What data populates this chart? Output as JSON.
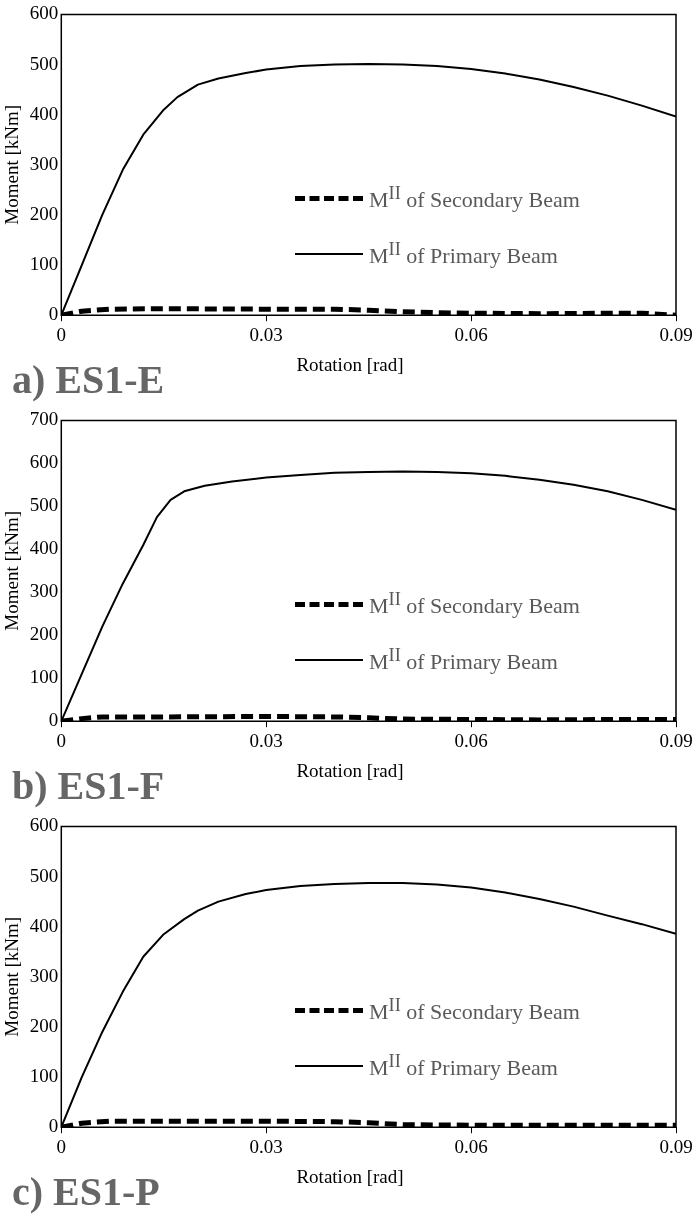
{
  "chart_data": [
    {
      "type": "line",
      "title": "a) ES1-E",
      "xlabel": "Rotation [rad]",
      "ylabel": "Moment [kNm]",
      "xlim": [
        0,
        0.09
      ],
      "xticks": [
        0,
        0.03,
        0.06,
        0.09
      ],
      "ylim": [
        0,
        600
      ],
      "yticks": [
        0,
        100,
        200,
        300,
        400,
        500,
        600
      ],
      "grid": false,
      "legend": "right",
      "marker": "none",
      "series": [
        {
          "name": "M$^{II}$ of Secondary Beam",
          "color": "#000000",
          "line_style": "dashed",
          "x": [
            0,
            0.003,
            0.007,
            0.015,
            0.03,
            0.04,
            0.045,
            0.05,
            0.055,
            0.06,
            0.07,
            0.08,
            0.085,
            0.09
          ],
          "values": [
            0,
            8,
            12,
            13,
            12,
            12,
            10,
            7,
            5,
            4,
            3,
            4,
            4,
            0
          ]
        },
        {
          "name": "M$^{II}$ of Primary Beam",
          "color": "#000000",
          "line_style": "solid",
          "x": [
            0,
            0.003,
            0.006,
            0.009,
            0.012,
            0.015,
            0.017,
            0.02,
            0.023,
            0.027,
            0.03,
            0.035,
            0.04,
            0.045,
            0.05,
            0.055,
            0.06,
            0.065,
            0.07,
            0.075,
            0.08,
            0.085,
            0.09
          ],
          "values": [
            0,
            100,
            200,
            290,
            360,
            410,
            435,
            460,
            472,
            483,
            490,
            497,
            500,
            501,
            500,
            497,
            491,
            482,
            470,
            455,
            438,
            418,
            396
          ]
        }
      ]
    },
    {
      "type": "line",
      "title": "b) ES1-F",
      "xlabel": "Rotation [rad]",
      "ylabel": "Moment [kNm]",
      "xlim": [
        0,
        0.09
      ],
      "xticks": [
        0,
        0.03,
        0.06,
        0.09
      ],
      "ylim": [
        0,
        700
      ],
      "yticks": [
        0,
        100,
        200,
        300,
        400,
        500,
        600,
        700
      ],
      "grid": false,
      "legend": "right",
      "marker": "none",
      "series": [
        {
          "name": "M$^{II}$ of Secondary Beam",
          "color": "#000000",
          "line_style": "dashed",
          "x": [
            0,
            0.003,
            0.006,
            0.015,
            0.03,
            0.04,
            0.045,
            0.05,
            0.06,
            0.07,
            0.08,
            0.09
          ],
          "values": [
            0,
            6,
            10,
            10,
            11,
            10,
            8,
            5,
            4,
            3,
            4,
            4
          ]
        },
        {
          "name": "M$^{II}$ of Primary Beam",
          "color": "#000000",
          "line_style": "solid",
          "x": [
            0,
            0.003,
            0.006,
            0.009,
            0.012,
            0.014,
            0.016,
            0.018,
            0.021,
            0.025,
            0.03,
            0.035,
            0.04,
            0.045,
            0.05,
            0.055,
            0.06,
            0.065,
            0.07,
            0.075,
            0.08,
            0.085,
            0.09
          ],
          "values": [
            0,
            110,
            220,
            320,
            410,
            475,
            515,
            535,
            548,
            558,
            567,
            573,
            578,
            580,
            581,
            580,
            577,
            571,
            562,
            550,
            535,
            515,
            492
          ]
        }
      ]
    },
    {
      "type": "line",
      "title": "c) ES1-P",
      "xlabel": "Rotation [rad]",
      "ylabel": "Moment [kNm]",
      "xlim": [
        0,
        0.09
      ],
      "xticks": [
        0,
        0.03,
        0.06,
        0.09
      ],
      "ylim": [
        0,
        600
      ],
      "yticks": [
        0,
        100,
        200,
        300,
        400,
        500,
        600
      ],
      "grid": false,
      "legend": "right",
      "marker": "none",
      "series": [
        {
          "name": "M$^{II}$ of Secondary Beam",
          "color": "#000000",
          "line_style": "dashed",
          "x": [
            0,
            0.003,
            0.007,
            0.015,
            0.03,
            0.04,
            0.045,
            0.05,
            0.06,
            0.07,
            0.09
          ],
          "values": [
            0,
            8,
            12,
            12,
            12,
            11,
            9,
            5,
            4,
            4,
            4
          ]
        },
        {
          "name": "M$^{II}$ of Primary Beam",
          "color": "#000000",
          "line_style": "solid",
          "x": [
            0,
            0.003,
            0.006,
            0.009,
            0.012,
            0.015,
            0.018,
            0.02,
            0.023,
            0.027,
            0.03,
            0.035,
            0.04,
            0.045,
            0.05,
            0.055,
            0.06,
            0.065,
            0.07,
            0.075,
            0.08,
            0.085,
            0.09
          ],
          "values": [
            0,
            100,
            190,
            270,
            340,
            385,
            415,
            432,
            450,
            465,
            473,
            481,
            485,
            487,
            487,
            484,
            478,
            468,
            455,
            440,
            422,
            405,
            386
          ]
        }
      ]
    }
  ]
}
